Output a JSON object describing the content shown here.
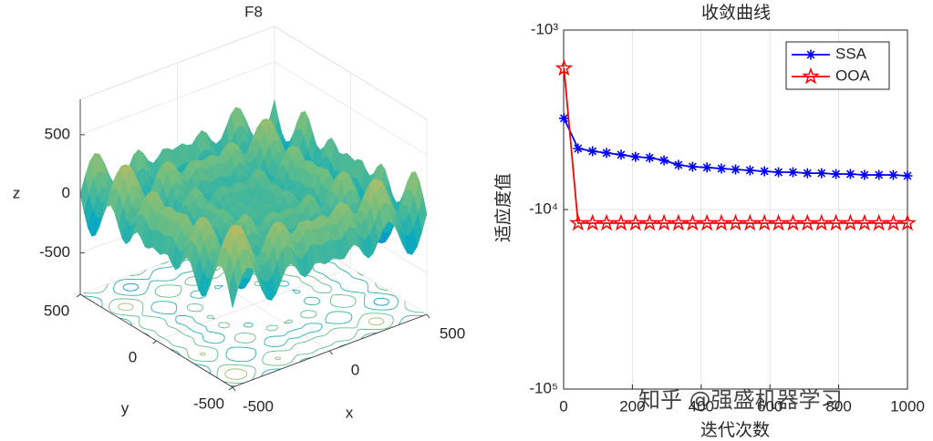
{
  "chart_data": [
    {
      "type": "surface",
      "title": "F8",
      "xlabel": "x",
      "ylabel": "y",
      "zlabel": "z",
      "xlim": [
        -500,
        500
      ],
      "xticks": [
        -500,
        0,
        500
      ],
      "ylim": [
        -500,
        500
      ],
      "yticks": [
        -500,
        0,
        500
      ],
      "zlim": [
        -850,
        800
      ],
      "zticks": [
        -500,
        0,
        500
      ]
    },
    {
      "type": "line",
      "title": "收敛曲线",
      "xlabel": "迭代次数",
      "ylabel": "适应度值",
      "x": [
        1,
        42,
        84,
        125,
        167,
        209,
        250,
        292,
        334,
        375,
        417,
        459,
        500,
        542,
        584,
        625,
        667,
        709,
        750,
        792,
        834,
        875,
        917,
        959,
        1000
      ],
      "series": [
        {
          "name": "SSA",
          "color": "#0000ff",
          "marker": "asterisk",
          "values": [
            -3100,
            -4570,
            -4730,
            -4840,
            -4950,
            -5080,
            -5140,
            -5320,
            -5640,
            -5770,
            -5830,
            -5910,
            -5980,
            -6050,
            -6120,
            -6190,
            -6190,
            -6270,
            -6270,
            -6340,
            -6340,
            -6410,
            -6410,
            -6410,
            -6490
          ]
        },
        {
          "name": "OOA",
          "color": "#ff0000",
          "marker": "star",
          "values": [
            -1633,
            -11900,
            -11900,
            -11900,
            -11900,
            -11900,
            -11900,
            -11900,
            -11900,
            -11900,
            -11900,
            -11900,
            -11900,
            -11900,
            -11900,
            -11900,
            -11900,
            -11900,
            -11900,
            -11900,
            -11900,
            -11900,
            -11900,
            -11900,
            -11900
          ]
        }
      ],
      "xlim": [
        0,
        1000
      ],
      "xticks": [
        0,
        200,
        400,
        600,
        800,
        1000
      ],
      "ylim": [
        -1000,
        -100000
      ],
      "log_y": true,
      "yticks": [
        {
          "value": -1000,
          "label": "-10³"
        },
        {
          "value": -10000,
          "label": "-10⁴"
        },
        {
          "value": -100000,
          "label": "-10⁵"
        }
      ],
      "grid": true,
      "legend": "top-right",
      "watermark": "知乎 @强盛机器学习"
    }
  ]
}
